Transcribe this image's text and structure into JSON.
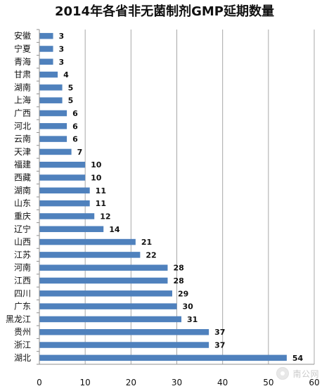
{
  "chart_data": {
    "type": "bar",
    "orientation": "horizontal",
    "title": "2014年各省非无菌制剂GMP延期数量",
    "categories": [
      "安徽",
      "宁夏",
      "青海",
      "甘肃",
      "湖南",
      "上海",
      "广西",
      "河北",
      "云南",
      "天津",
      "福建",
      "西藏",
      "湖南",
      "山东",
      "重庆",
      "辽宁",
      "山西",
      "江苏",
      "河南",
      "江西",
      "四川",
      "广东",
      "黑龙江",
      "贵州",
      "浙江",
      "湖北"
    ],
    "values": [
      3,
      3,
      3,
      4,
      5,
      5,
      6,
      6,
      6,
      7,
      10,
      10,
      11,
      11,
      12,
      14,
      21,
      22,
      28,
      28,
      29,
      30,
      31,
      37,
      37,
      54
    ],
    "x_ticks": [
      "0",
      "10",
      "20",
      "30",
      "40",
      "50",
      "60"
    ],
    "xlim": [
      0,
      60
    ],
    "grid": "vertical",
    "bar_color": "#4f81bd",
    "data_labels": true,
    "xlabel": "",
    "ylabel": ""
  },
  "watermark": {
    "text": "南公网",
    "icon": "wechat-logo-icon"
  }
}
